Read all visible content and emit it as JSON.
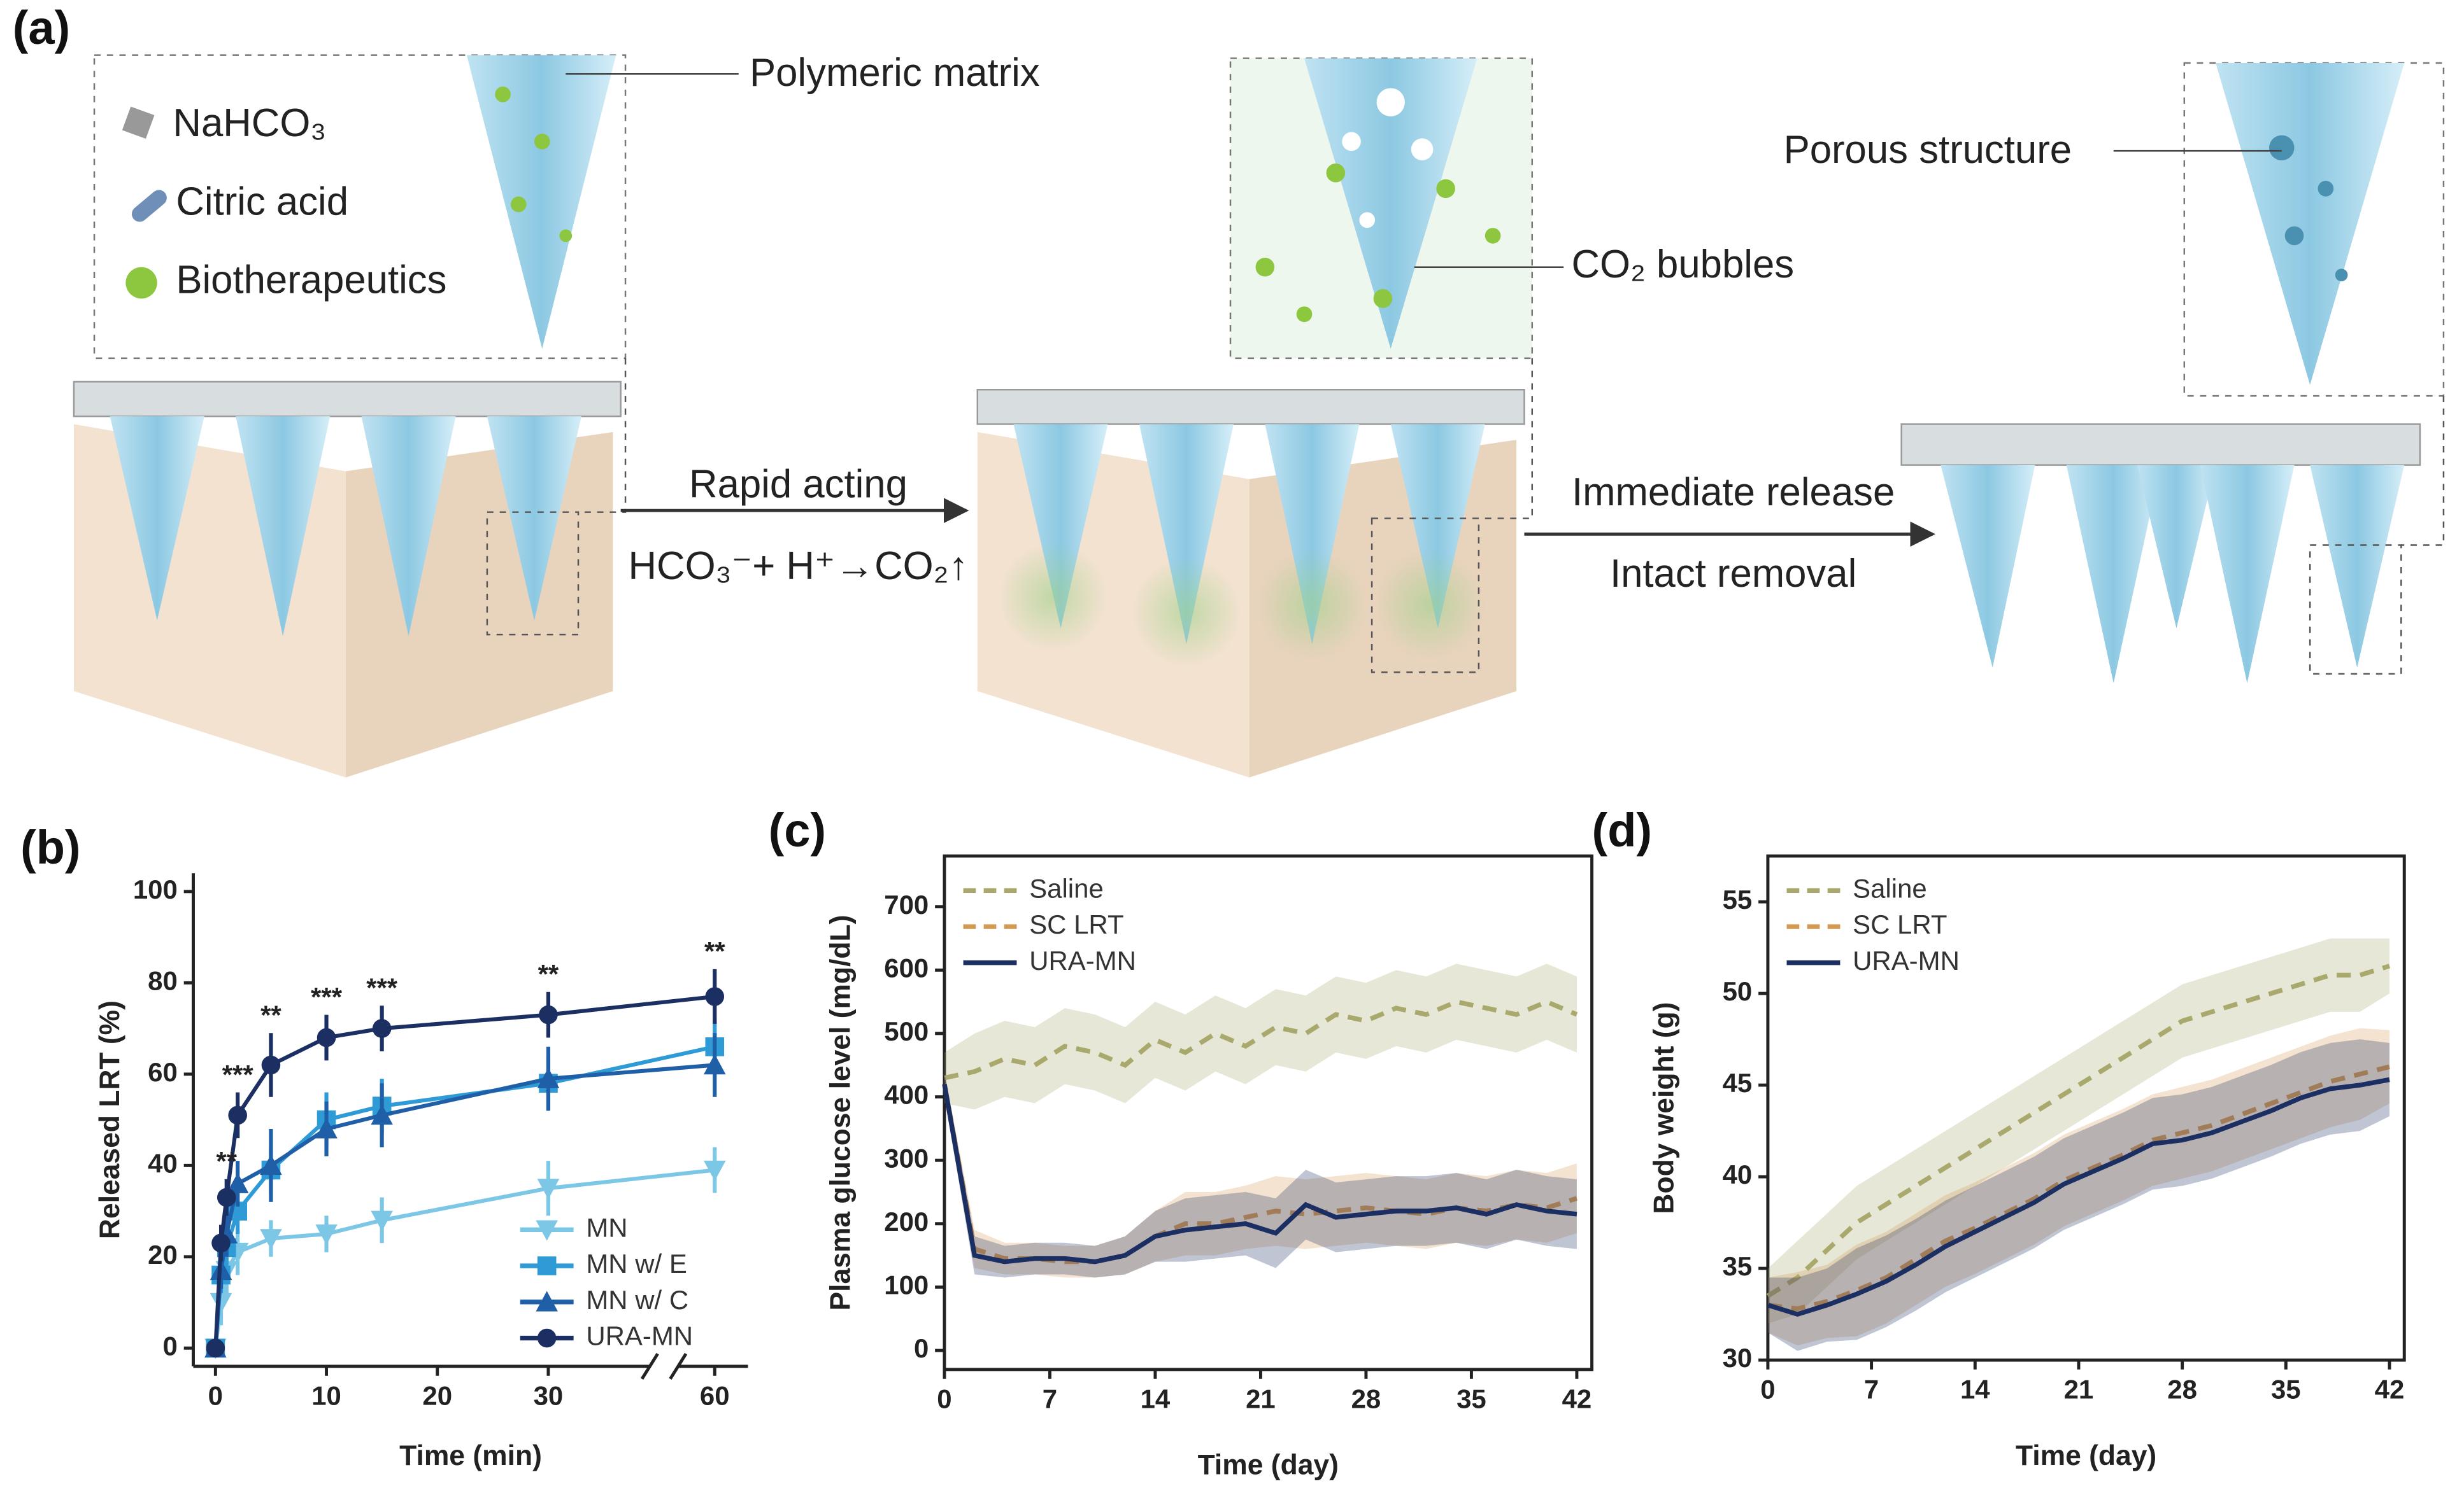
{
  "panel_a": {
    "label": "(a)",
    "polymeric": "Polymeric matrix",
    "nahco3": "NaHCO₃",
    "citric": "Citric acid",
    "bio": "Biotherapeutics",
    "co2": "CO₂ bubbles",
    "porous": "Porous structure",
    "rapid": "Rapid acting",
    "reaction": "HCO₃⁻+ H⁺→CO₂↑",
    "immediate": "Immediate release",
    "intact": "Intact removal"
  },
  "chart_data": [
    {
      "type": "line",
      "panel": "(b)",
      "xlabel": "Time (min)",
      "ylabel": "Released LRT (%)",
      "x": [
        0,
        0.5,
        1,
        2,
        5,
        10,
        15,
        30,
        60
      ],
      "xlim": [
        -2,
        63
      ],
      "xbreak": [
        40,
        55
      ],
      "xticks": [
        0,
        10,
        20,
        30,
        60
      ],
      "ylim": [
        -4,
        104
      ],
      "yticks": [
        0,
        20,
        40,
        60,
        80,
        100
      ],
      "frame": false,
      "legend": "lower right",
      "series": [
        {
          "name": "MN",
          "color": "#7cc6e6",
          "marker": "tri-down",
          "values": [
            0,
            10,
            17,
            21,
            24,
            25,
            28,
            35,
            39
          ],
          "errors": [
            0,
            5,
            5,
            5,
            4,
            4,
            5,
            6,
            5
          ]
        },
        {
          "name": "MN w/ E",
          "color": "#2f9bd6",
          "marker": "square",
          "values": [
            0,
            16,
            22,
            30,
            39,
            50,
            53,
            58,
            66
          ],
          "errors": [
            0,
            4,
            5,
            5,
            5,
            6,
            6,
            6,
            6
          ]
        },
        {
          "name": "MN w/ C",
          "color": "#1f5fa8",
          "marker": "tri-up",
          "values": [
            0,
            17,
            25,
            36,
            40,
            48,
            51,
            59,
            62
          ],
          "errors": [
            0,
            4,
            5,
            5,
            8,
            6,
            7,
            7,
            7
          ]
        },
        {
          "name": "URA-MN",
          "color": "#1b2f63",
          "marker": "circle",
          "values": [
            0,
            23,
            33,
            51,
            62,
            68,
            70,
            73,
            77
          ],
          "errors": [
            0,
            4,
            4,
            5,
            7,
            5,
            5,
            5,
            6
          ]
        }
      ],
      "annotations": [
        {
          "x": 1,
          "text": "**"
        },
        {
          "x": 2,
          "text": "***"
        },
        {
          "x": 5,
          "text": "**"
        },
        {
          "x": 10,
          "text": "***"
        },
        {
          "x": 15,
          "text": "***"
        },
        {
          "x": 30,
          "text": "**"
        },
        {
          "x": 60,
          "text": "**"
        }
      ]
    },
    {
      "type": "line",
      "panel": "(c)",
      "xlabel": "Time (day)",
      "ylabel": "Plasma glucose level (mg/dL)",
      "x": [
        0,
        2,
        4,
        6,
        8,
        10,
        12,
        14,
        16,
        18,
        20,
        22,
        24,
        26,
        28,
        30,
        32,
        34,
        36,
        38,
        40,
        42
      ],
      "xlim": [
        0,
        43
      ],
      "xticks": [
        0,
        7,
        14,
        21,
        28,
        35,
        42
      ],
      "ylim": [
        -30,
        780
      ],
      "yticks": [
        0,
        100,
        200,
        300,
        400,
        500,
        600,
        700
      ],
      "frame": true,
      "legend": "upper left",
      "series": [
        {
          "name": "Saline",
          "color": "#a9a96e",
          "dash": true,
          "values": [
            430,
            440,
            460,
            450,
            480,
            470,
            450,
            490,
            470,
            500,
            480,
            510,
            500,
            530,
            520,
            540,
            530,
            550,
            540,
            530,
            550,
            530
          ],
          "errors": [
            40,
            60,
            60,
            60,
            60,
            60,
            60,
            60,
            60,
            60,
            60,
            60,
            60,
            60,
            60,
            60,
            60,
            60,
            60,
            60,
            60,
            60
          ]
        },
        {
          "name": "SC LRT",
          "color": "#d39a55",
          "dash": true,
          "values": [
            420,
            160,
            145,
            145,
            140,
            140,
            150,
            180,
            200,
            200,
            210,
            220,
            215,
            220,
            225,
            220,
            215,
            225,
            220,
            230,
            225,
            240
          ],
          "errors": [
            20,
            30,
            25,
            25,
            25,
            25,
            30,
            40,
            50,
            50,
            50,
            55,
            55,
            55,
            55,
            55,
            55,
            55,
            55,
            55,
            55,
            55
          ]
        },
        {
          "name": "URA-MN",
          "color": "#1b2f63",
          "values": [
            420,
            150,
            140,
            145,
            145,
            140,
            150,
            180,
            190,
            195,
            200,
            185,
            230,
            210,
            215,
            220,
            220,
            225,
            215,
            230,
            220,
            215
          ],
          "errors": [
            20,
            30,
            25,
            25,
            25,
            25,
            30,
            40,
            50,
            50,
            50,
            55,
            55,
            55,
            55,
            55,
            55,
            55,
            55,
            55,
            55,
            55
          ]
        }
      ]
    },
    {
      "type": "line",
      "panel": "(d)",
      "xlabel": "Time (day)",
      "ylabel": "Body weight (g)",
      "x": [
        0,
        2,
        4,
        6,
        8,
        10,
        12,
        14,
        16,
        18,
        20,
        22,
        24,
        26,
        28,
        30,
        32,
        34,
        36,
        38,
        40,
        42
      ],
      "xlim": [
        0,
        43
      ],
      "xticks": [
        0,
        7,
        14,
        21,
        28,
        35,
        42
      ],
      "ylim": [
        30,
        57.5
      ],
      "yticks": [
        30,
        35,
        40,
        45,
        50,
        55
      ],
      "frame": true,
      "legend": "upper left",
      "series": [
        {
          "name": "Saline",
          "color": "#a9a96e",
          "dash": true,
          "values": [
            33.5,
            34.5,
            36,
            37.5,
            38.5,
            39.5,
            40.5,
            41.5,
            42.5,
            43.5,
            44.5,
            45.5,
            46.5,
            47.5,
            48.5,
            49,
            49.5,
            50,
            50.5,
            51,
            51,
            51.5
          ],
          "errors": [
            1.5,
            2,
            2,
            2,
            2,
            2,
            2,
            2,
            2,
            2,
            2,
            2,
            2,
            2,
            2,
            2,
            2,
            2,
            2,
            2,
            2,
            1.5
          ]
        },
        {
          "name": "SC LRT",
          "color": "#d39a55",
          "dash": true,
          "values": [
            33,
            32.8,
            33.2,
            33.8,
            34.5,
            35.5,
            36.5,
            37.2,
            38,
            38.8,
            39.8,
            40.5,
            41.2,
            42,
            42.4,
            42.8,
            43.4,
            44,
            44.6,
            45.2,
            45.6,
            46
          ],
          "errors": [
            1.5,
            2,
            2,
            2.5,
            2.5,
            2.5,
            2.5,
            2.5,
            2.5,
            2.5,
            2.5,
            2.5,
            2.5,
            2.5,
            2.5,
            2.5,
            2.5,
            2.5,
            2.5,
            2.5,
            2.5,
            2
          ]
        },
        {
          "name": "URA-MN",
          "color": "#1b2f63",
          "values": [
            33,
            32.5,
            33,
            33.6,
            34.3,
            35.2,
            36.2,
            37,
            37.8,
            38.6,
            39.6,
            40.3,
            41,
            41.8,
            42,
            42.4,
            43,
            43.6,
            44.3,
            44.8,
            45,
            45.3
          ],
          "errors": [
            1.5,
            2,
            2,
            2.5,
            2.5,
            2.5,
            2.5,
            2.5,
            2.5,
            2.5,
            2.5,
            2.5,
            2.5,
            2.5,
            2.5,
            2.5,
            2.5,
            2.5,
            2.5,
            2.5,
            2.5,
            2
          ]
        }
      ]
    }
  ]
}
